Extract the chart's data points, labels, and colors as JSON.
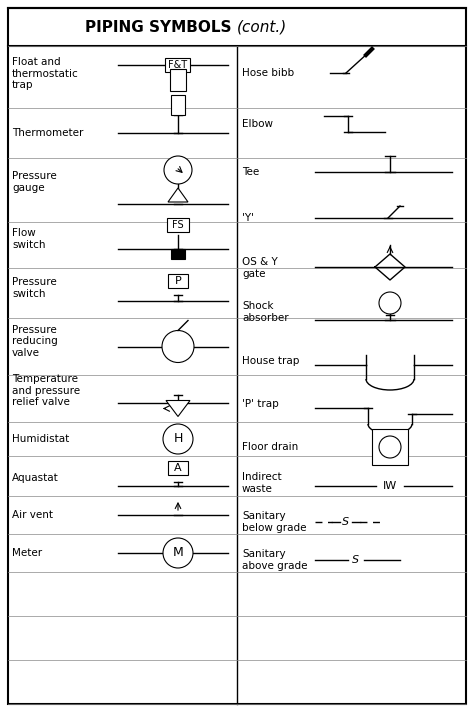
{
  "title_bold": "PIPING SYMBOLS ",
  "title_italic": "(cont.)",
  "left_rows": [
    {
      "label": "Float and\nthermostatic\ntrap"
    },
    {
      "label": "Thermometer"
    },
    {
      "label": "Pressure\ngauge"
    },
    {
      "label": "Flow\nswitch"
    },
    {
      "label": "Pressure\nswitch"
    },
    {
      "label": "Pressure\nreducing\nvalve"
    },
    {
      "label": "Temperature\nand pressure\nrelief valve"
    },
    {
      "label": "Humidistat"
    },
    {
      "label": "Aquastat"
    },
    {
      "label": "Air vent"
    },
    {
      "label": "Meter"
    }
  ],
  "right_rows": [
    {
      "label": "Hose bibb"
    },
    {
      "label": "Elbow"
    },
    {
      "label": "Tee"
    },
    {
      "label": "'Y'"
    },
    {
      "label": "OS & Y\ngate"
    },
    {
      "label": "Shock\nabsorber"
    },
    {
      "label": "House trap"
    },
    {
      "label": "'P' trap"
    },
    {
      "label": "Floor drain"
    },
    {
      "label": "Indirect\nwaste"
    },
    {
      "label": "Sanitary\nbelow grade"
    },
    {
      "label": "Sanitary\nabove grade"
    }
  ]
}
